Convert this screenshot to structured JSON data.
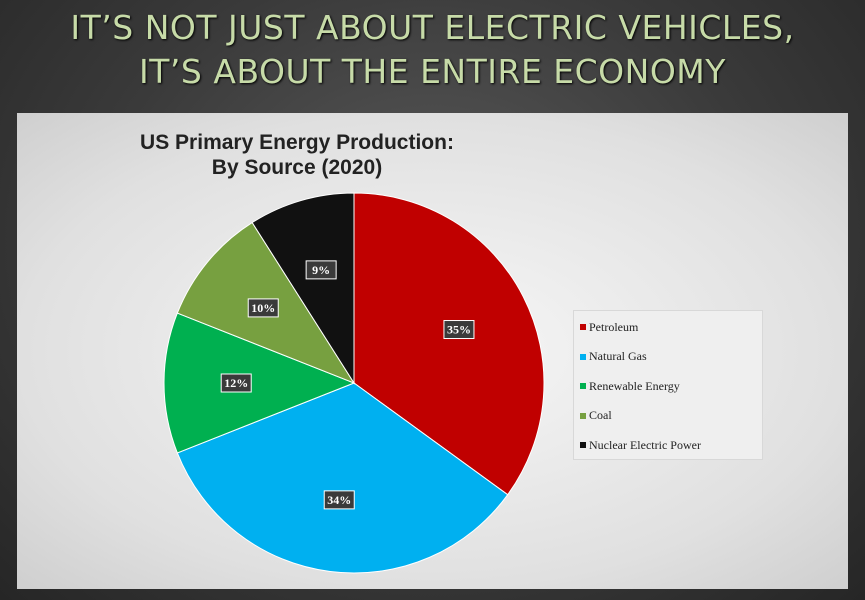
{
  "headline": {
    "line1": "IT’S NOT JUST ABOUT ELECTRIC VEHICLES,",
    "line2": "IT’S ABOUT THE ENTIRE ECONOMY"
  },
  "chart_data": {
    "type": "pie",
    "title_line1": "US Primary Energy Production:",
    "title_line2": "By Source (2020)",
    "legend_position": "right",
    "slices": [
      {
        "name": "Petroleum",
        "value": 35,
        "label": "35%",
        "color": "#c00000"
      },
      {
        "name": "Natural Gas",
        "value": 34,
        "label": "34%",
        "color": "#00b0f0"
      },
      {
        "name": "Renewable Energy",
        "value": 12,
        "label": "12%",
        "color": "#00b050"
      },
      {
        "name": "Coal",
        "value": 10,
        "label": "10%",
        "color": "#77a040"
      },
      {
        "name": "Nuclear Electric Power",
        "value": 9,
        "label": "9%",
        "color": "#111111"
      }
    ]
  }
}
